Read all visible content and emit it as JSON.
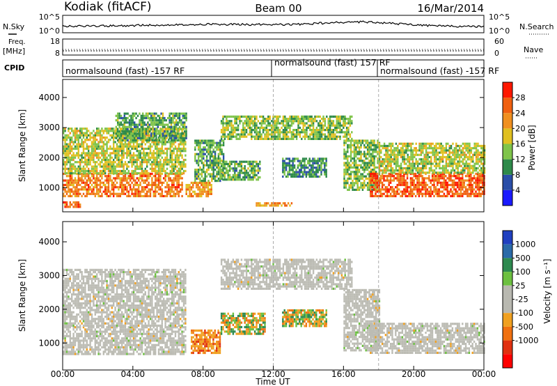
{
  "header": {
    "station": "Kodiak (fitACF)",
    "beam": "Beam 00",
    "date": "16/Mar/2014"
  },
  "strip_labels": {
    "nsky": "N.Sky",
    "nsearch": "N.Search",
    "freq": "Freq.",
    "freq_unit": "[MHz]",
    "nave": "Nave",
    "cpid": "CPID",
    "nsky_ticks": [
      "10^5",
      "10^0"
    ],
    "nsearch_ticks": [
      "10^5",
      "10^0"
    ],
    "freq_ticks": [
      "18",
      "8"
    ],
    "nave_ticks": [
      "60",
      "0"
    ]
  },
  "cpid_segments": [
    {
      "label": "normalsound (fast) -157 RF",
      "start_hr": 0
    },
    {
      "label": "normalsound (fast) 157 RF",
      "start_hr": 12
    },
    {
      "label": "normalsound (fast) -157 RF",
      "start_hr": 18
    }
  ],
  "colors": {
    "power_scale": [
      "#1a1aff",
      "#2a4ea8",
      "#2e8a4a",
      "#7fc44a",
      "#e0c020",
      "#f09020",
      "#f06010",
      "#ff1800"
    ],
    "velocity_scale": [
      "#2040c0",
      "#2a6aa8",
      "#2e8a50",
      "#6cc040",
      "#b8b8b0",
      "#b8b8b0",
      "#f0a020",
      "#f07010",
      "#e03010",
      "#ff0000"
    ]
  },
  "chart_data": [
    {
      "type": "heatmap",
      "title": "",
      "xlabel": "",
      "ylabel": "Slant Range [km]",
      "xlim": [
        0,
        24
      ],
      "ylim": [
        200,
        4600
      ],
      "yticks": [
        "1000",
        "2000",
        "3000",
        "4000"
      ],
      "colorbar": {
        "label": "Power [dB]",
        "ticks": [
          "4",
          "8",
          "12",
          "16",
          "20",
          "24",
          "28"
        ],
        "range": [
          0,
          32
        ]
      },
      "regions": [
        {
          "t0": 0.0,
          "t1": 6.8,
          "r0": 700,
          "r1": 1500,
          "value": 24
        },
        {
          "t0": 0.0,
          "t1": 7.0,
          "r0": 1500,
          "r1": 3000,
          "value": 16
        },
        {
          "t0": 3.0,
          "t1": 7.0,
          "r0": 2600,
          "r1": 3500,
          "value": 12
        },
        {
          "t0": 7.0,
          "t1": 8.5,
          "r0": 700,
          "r1": 1200,
          "value": 22
        },
        {
          "t0": 7.5,
          "t1": 9.2,
          "r0": 1200,
          "r1": 2600,
          "value": 12
        },
        {
          "t0": 9.0,
          "t1": 16.5,
          "r0": 2600,
          "r1": 3400,
          "value": 14
        },
        {
          "t0": 9.0,
          "t1": 11.2,
          "r0": 1300,
          "r1": 1900,
          "value": 12
        },
        {
          "t0": 12.5,
          "t1": 15.0,
          "r0": 1400,
          "r1": 2000,
          "value": 10
        },
        {
          "t0": 16.0,
          "t1": 18.0,
          "r0": 900,
          "r1": 2600,
          "value": 14
        },
        {
          "t0": 17.5,
          "t1": 24.0,
          "r0": 700,
          "r1": 1500,
          "value": 26
        },
        {
          "t0": 18.0,
          "t1": 24.0,
          "r0": 1500,
          "r1": 2500,
          "value": 16
        },
        {
          "t0": 0.0,
          "t1": 1.0,
          "r0": 350,
          "r1": 550,
          "value": 24
        },
        {
          "t0": 11.0,
          "t1": 13.0,
          "r0": 380,
          "r1": 520,
          "value": 22
        }
      ]
    },
    {
      "type": "heatmap",
      "title": "",
      "xlabel": "Time UT",
      "ylabel": "Slant Range [km]",
      "xlim": [
        0,
        24
      ],
      "ylim": [
        200,
        4600
      ],
      "xticks": [
        "00:00",
        "04:00",
        "08:00",
        "12:00",
        "16:00",
        "20:00",
        "00:00"
      ],
      "yticks": [
        "1000",
        "2000",
        "3000",
        "4000"
      ],
      "colorbar": {
        "label": "Velocity [m s⁻¹]",
        "ticks": [
          "1000",
          "500",
          "100",
          "25",
          "-25",
          "-100",
          "-500",
          "-1000"
        ]
      },
      "regions": [
        {
          "t0": 0.0,
          "t1": 7.0,
          "r0": 700,
          "r1": 1500,
          "class": "low"
        },
        {
          "t0": 0.0,
          "t1": 7.0,
          "r0": 1500,
          "r1": 3200,
          "class": "low"
        },
        {
          "t0": 7.3,
          "t1": 9.0,
          "r0": 700,
          "r1": 1400,
          "class": "neg_medium"
        },
        {
          "t0": 9.0,
          "t1": 11.5,
          "r0": 1300,
          "r1": 1900,
          "class": "mixed"
        },
        {
          "t0": 9.0,
          "t1": 16.5,
          "r0": 2600,
          "r1": 3500,
          "class": "low"
        },
        {
          "t0": 12.5,
          "t1": 15.0,
          "r0": 1500,
          "r1": 2000,
          "class": "mixed"
        },
        {
          "t0": 16.0,
          "t1": 18.0,
          "r0": 800,
          "r1": 2600,
          "class": "low"
        },
        {
          "t0": 17.5,
          "t1": 24.0,
          "r0": 700,
          "r1": 1600,
          "class": "low"
        }
      ]
    }
  ]
}
